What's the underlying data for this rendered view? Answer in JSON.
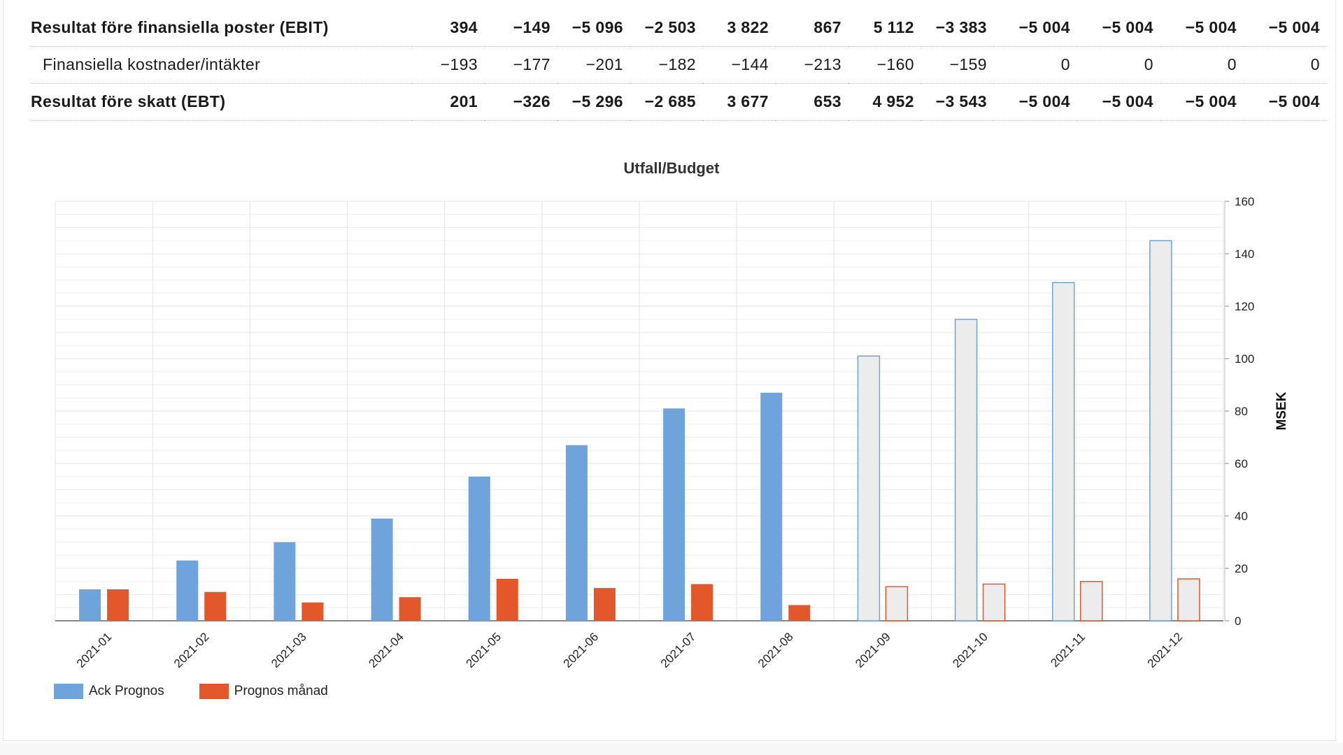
{
  "table": {
    "rows": [
      {
        "label": "Resultat före finansiella poster (EBIT)",
        "bold": true,
        "values": [
          "394",
          "−149",
          "−5 096",
          "−2 503",
          "3 822",
          "867",
          "5 112",
          "−3 383",
          "−5 004",
          "−5 004",
          "−5 004",
          "−5 004"
        ]
      },
      {
        "label": "Finansiella kostnader/intäkter",
        "bold": false,
        "values": [
          "−193",
          "−177",
          "−201",
          "−182",
          "−144",
          "−213",
          "−160",
          "−159",
          "0",
          "0",
          "0",
          "0"
        ]
      },
      {
        "label": "Resultat före skatt (EBT)",
        "bold": true,
        "values": [
          "201",
          "−326",
          "−5 296",
          "−2 685",
          "3 677",
          "653",
          "4 952",
          "−3 543",
          "−5 004",
          "−5 004",
          "−5 004",
          "−5 004"
        ]
      }
    ]
  },
  "chart_data": {
    "type": "bar",
    "title": "Utfall/Budget",
    "ylabel": "MSEK",
    "ylim": [
      0,
      160
    ],
    "yticks": [
      0,
      20,
      40,
      60,
      80,
      100,
      120,
      140,
      160
    ],
    "y_axis_side": "right",
    "grid": true,
    "legend_position": "bottom-left",
    "categories": [
      "2021-01",
      "2021-02",
      "2021-03",
      "2021-04",
      "2021-05",
      "2021-06",
      "2021-07",
      "2021-08",
      "2021-09",
      "2021-10",
      "2021-11",
      "2021-12"
    ],
    "actual_count": 8,
    "series": [
      {
        "name": "Ack Prognos",
        "color": "#6fa3dc",
        "values": [
          12,
          23,
          30,
          39,
          55,
          67,
          81,
          87,
          101,
          115,
          129,
          145
        ]
      },
      {
        "name": "Prognos månad",
        "color": "#e3582a",
        "values": [
          12,
          11,
          7,
          9,
          16,
          12.5,
          14,
          6,
          13,
          14,
          15,
          16
        ]
      }
    ],
    "forecast_fill": "#ececec"
  }
}
